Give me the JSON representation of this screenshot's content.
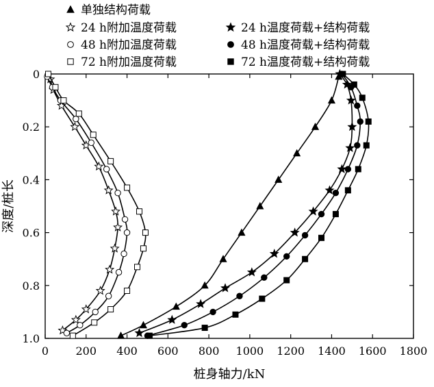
{
  "chart_data": {
    "type": "line",
    "title": "",
    "xlabel": "桩身轴力/kN",
    "ylabel": "深度/桩长",
    "xlim": [
      0,
      1800
    ],
    "ylim": [
      1.0,
      0
    ],
    "y_inverted": true,
    "x_ticks": [
      0,
      200,
      400,
      600,
      800,
      1000,
      1200,
      1400,
      1600,
      1800
    ],
    "y_ticks": [
      0,
      0.2,
      0.4,
      0.6,
      0.8,
      1.0
    ],
    "y_tick_labels": [
      "0",
      "0.2",
      "0.4",
      "0.6",
      "0.8",
      "1.0"
    ],
    "grid": false,
    "legend_position": "top",
    "series": [
      {
        "name": "单独结构荷载",
        "marker": "triangle",
        "fill": "#000000",
        "legend_col": 0,
        "legend_row": 0,
        "points": [
          [
            1435,
            0.01
          ],
          [
            1400,
            0.1
          ],
          [
            1320,
            0.2
          ],
          [
            1230,
            0.3
          ],
          [
            1140,
            0.4
          ],
          [
            1050,
            0.5
          ],
          [
            960,
            0.6
          ],
          [
            870,
            0.7
          ],
          [
            780,
            0.8
          ],
          [
            640,
            0.88
          ],
          [
            480,
            0.95
          ],
          [
            370,
            0.99
          ]
        ]
      },
      {
        "name": "24 h附加温度荷载",
        "marker": "star",
        "fill": "#ffffff",
        "legend_col": 0,
        "legend_row": 1,
        "points": [
          [
            25,
            0.02
          ],
          [
            40,
            0.06
          ],
          [
            80,
            0.12
          ],
          [
            145,
            0.2
          ],
          [
            200,
            0.27
          ],
          [
            262,
            0.35
          ],
          [
            310,
            0.44
          ],
          [
            345,
            0.52
          ],
          [
            355,
            0.58
          ],
          [
            340,
            0.66
          ],
          [
            315,
            0.74
          ],
          [
            270,
            0.82
          ],
          [
            200,
            0.89
          ],
          [
            150,
            0.93
          ],
          [
            85,
            0.97
          ]
        ]
      },
      {
        "name": "48 h附加温度荷载",
        "marker": "circle",
        "fill": "#ffffff",
        "legend_col": 0,
        "legend_row": 2,
        "points": [
          [
            10,
            0.01
          ],
          [
            35,
            0.05
          ],
          [
            75,
            0.1
          ],
          [
            150,
            0.17
          ],
          [
            225,
            0.26
          ],
          [
            300,
            0.36
          ],
          [
            355,
            0.45
          ],
          [
            390,
            0.55
          ],
          [
            400,
            0.6
          ],
          [
            385,
            0.68
          ],
          [
            360,
            0.75
          ],
          [
            310,
            0.84
          ],
          [
            245,
            0.9
          ],
          [
            170,
            0.95
          ],
          [
            105,
            0.98
          ]
        ]
      },
      {
        "name": "72 h附加温度荷载",
        "marker": "square",
        "fill": "#ffffff",
        "legend_col": 0,
        "legend_row": 3,
        "points": [
          [
            15,
            0.0
          ],
          [
            50,
            0.05
          ],
          [
            90,
            0.1
          ],
          [
            165,
            0.15
          ],
          [
            235,
            0.23
          ],
          [
            320,
            0.33
          ],
          [
            400,
            0.43
          ],
          [
            460,
            0.52
          ],
          [
            490,
            0.6
          ],
          [
            480,
            0.66
          ],
          [
            450,
            0.73
          ],
          [
            400,
            0.82
          ],
          [
            320,
            0.89
          ],
          [
            240,
            0.94
          ],
          [
            135,
            0.99
          ]
        ]
      },
      {
        "name": "24 h温度荷载+结构荷载",
        "marker": "star",
        "fill": "#000000",
        "legend_col": 1,
        "legend_row": 1,
        "points": [
          [
            1440,
            0.0
          ],
          [
            1475,
            0.04
          ],
          [
            1495,
            0.1
          ],
          [
            1500,
            0.2
          ],
          [
            1490,
            0.28
          ],
          [
            1450,
            0.36
          ],
          [
            1390,
            0.44
          ],
          [
            1310,
            0.52
          ],
          [
            1220,
            0.6
          ],
          [
            1120,
            0.68
          ],
          [
            1010,
            0.75
          ],
          [
            880,
            0.81
          ],
          [
            760,
            0.87
          ],
          [
            620,
            0.93
          ],
          [
            460,
            0.98
          ]
        ]
      },
      {
        "name": "48 h温度荷载+结构荷载",
        "marker": "circle",
        "fill": "#000000",
        "legend_col": 1,
        "legend_row": 2,
        "points": [
          [
            1450,
            0.0
          ],
          [
            1495,
            0.05
          ],
          [
            1525,
            0.12
          ],
          [
            1540,
            0.18
          ],
          [
            1525,
            0.27
          ],
          [
            1480,
            0.36
          ],
          [
            1420,
            0.45
          ],
          [
            1350,
            0.53
          ],
          [
            1270,
            0.61
          ],
          [
            1180,
            0.69
          ],
          [
            1070,
            0.77
          ],
          [
            950,
            0.84
          ],
          [
            820,
            0.9
          ],
          [
            680,
            0.95
          ],
          [
            500,
            0.99
          ]
        ]
      },
      {
        "name": "72 h温度荷载+结构荷载",
        "marker": "square",
        "fill": "#000000",
        "legend_col": 1,
        "legend_row": 3,
        "points": [
          [
            1455,
            0.0
          ],
          [
            1510,
            0.04
          ],
          [
            1550,
            0.09
          ],
          [
            1580,
            0.18
          ],
          [
            1570,
            0.27
          ],
          [
            1530,
            0.36
          ],
          [
            1480,
            0.44
          ],
          [
            1420,
            0.53
          ],
          [
            1350,
            0.62
          ],
          [
            1270,
            0.7
          ],
          [
            1180,
            0.78
          ],
          [
            1060,
            0.85
          ],
          [
            930,
            0.91
          ],
          [
            780,
            0.96
          ],
          [
            510,
            0.99
          ]
        ]
      }
    ]
  }
}
